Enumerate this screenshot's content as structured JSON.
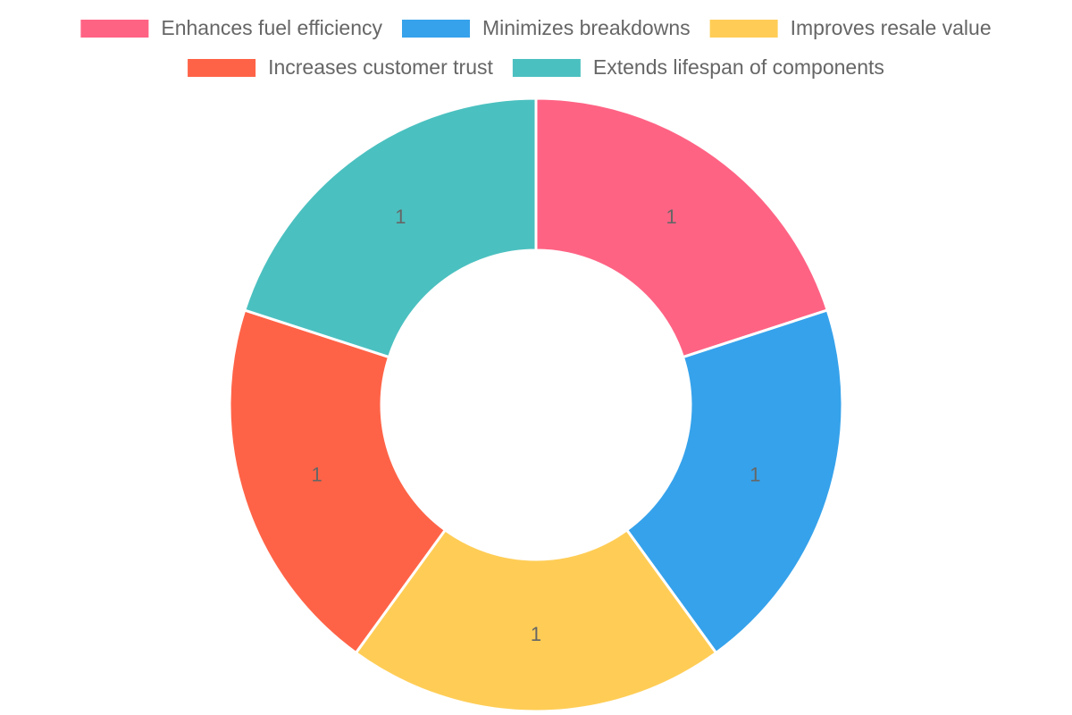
{
  "chart_data": {
    "type": "doughnut",
    "categories": [
      "Enhances fuel efficiency",
      "Minimizes breakdowns",
      "Improves resale value",
      "Increases customer trust",
      "Extends lifespan of components"
    ],
    "values": [
      1,
      1,
      1,
      1,
      1
    ],
    "colors": [
      "#ff6384",
      "#36a2eb",
      "#ffcd56",
      "#ff6347",
      "#4bc0c0"
    ],
    "legend": "top"
  }
}
